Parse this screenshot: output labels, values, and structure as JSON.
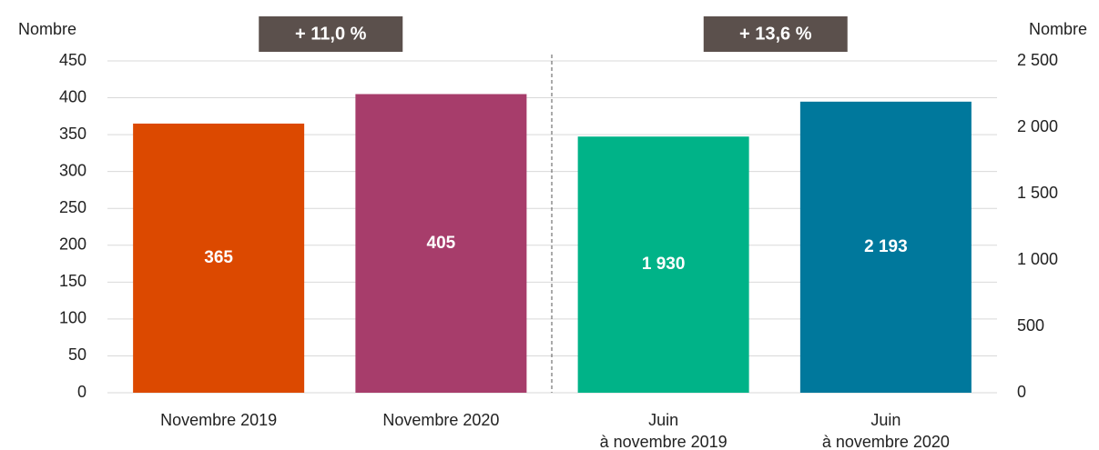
{
  "chart_data": {
    "type": "bar",
    "ylabel": "Nombre",
    "y2label": "Nombre",
    "categories": [
      "Novembre 2019",
      "Novembre 2020",
      "Juin\nà novembre 2019",
      "Juin\nà novembre 2020"
    ],
    "series": [
      {
        "values": [
          365,
          405,
          null,
          null
        ],
        "colors": [
          "#dc4900",
          "#a73d6b",
          null,
          null
        ],
        "axis": "y"
      },
      {
        "values": [
          null,
          null,
          1930,
          2193
        ],
        "value_labels": [
          null,
          null,
          "1 930",
          "2 193"
        ],
        "colors": [
          null,
          null,
          "#00b388",
          "#00789c"
        ],
        "axis": "y2"
      }
    ],
    "annotations": [
      "+ 11,0 %",
      "+ 13,6 %"
    ],
    "ylim": [
      0,
      450
    ],
    "yticks": [
      0,
      50,
      100,
      150,
      200,
      250,
      300,
      350,
      400,
      450
    ],
    "y2lim": [
      0,
      2500
    ],
    "y2ticks": [
      0,
      500,
      {
        "value": 1000,
        "label": "1 000"
      },
      {
        "value": 1500,
        "label": "1 500"
      },
      {
        "value": 2000,
        "label": "2 000"
      },
      {
        "value": 2500,
        "label": "2 500"
      }
    ],
    "grid": true
  }
}
